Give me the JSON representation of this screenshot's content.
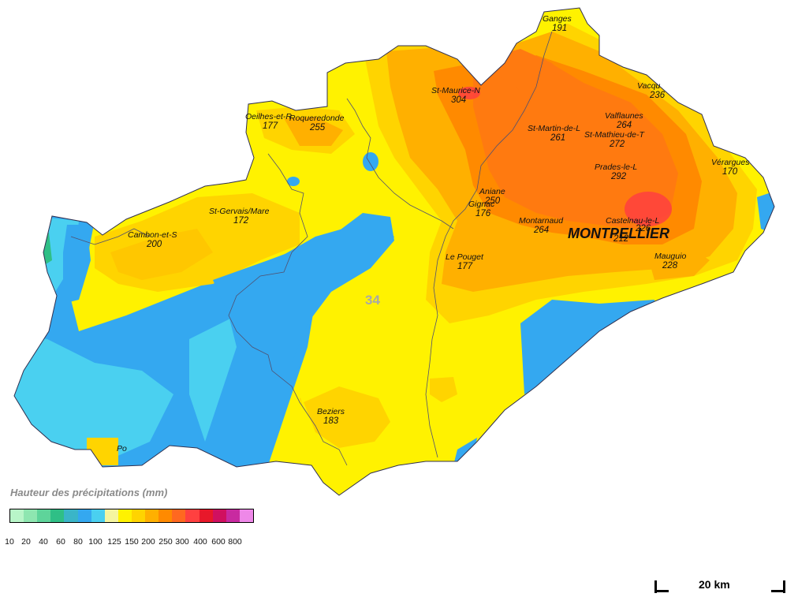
{
  "department": "34",
  "city": "MONTPELLIER",
  "stations": [
    {
      "name": "Ganges",
      "value": "191"
    },
    {
      "name": "St-Maurice-N",
      "value": "304"
    },
    {
      "name": "Vacqu",
      "value": "236"
    },
    {
      "name": "Valflaunes",
      "value": "264"
    },
    {
      "name": "St-Martin-de-L",
      "value": "261"
    },
    {
      "name": "St-Mathieu-de-T",
      "value": "272"
    },
    {
      "name": "Prades-le-L",
      "value": "292"
    },
    {
      "name": "Vérargues",
      "value": "170"
    },
    {
      "name": "Oeilhes-et-R",
      "value": "177"
    },
    {
      "name": "Roqueredonde",
      "value": "255"
    },
    {
      "name": "St-Gervais/Mare",
      "value": "172"
    },
    {
      "name": "Cambon-et-S",
      "value": "200"
    },
    {
      "name": "Aniane",
      "value": "250"
    },
    {
      "name": "Gignac",
      "value": "176"
    },
    {
      "name": "Montarnaud",
      "value": "264"
    },
    {
      "name": "Castelnau-le-L",
      "value": "226"
    },
    {
      "name": "Montpellier",
      "value": "212"
    },
    {
      "name": "Le Pouget",
      "value": "177"
    },
    {
      "name": "Mauguio",
      "value": "228"
    },
    {
      "name": "Beziers",
      "value": "183"
    },
    {
      "name": "Po",
      "value": ""
    }
  ],
  "legend": {
    "title": "Hauteur des précipitations (mm)",
    "colors": [
      "#b8f5c8",
      "#8ee6b0",
      "#5ed49a",
      "#2fbf86",
      "#3ab5c8",
      "#34a8f0",
      "#4ad0f0",
      "#f5f5a0",
      "#fff200",
      "#ffd400",
      "#ffb000",
      "#ff8a00",
      "#ff6820",
      "#ff4040",
      "#e8182a",
      "#d01060",
      "#c82aa0",
      "#ee88e8"
    ],
    "ticks": [
      "10",
      "20",
      "40",
      "60",
      "80",
      "100",
      "125",
      "150",
      "200",
      "250",
      "300",
      "400",
      "600",
      "800"
    ]
  },
  "scale": {
    "label": "20 km"
  }
}
